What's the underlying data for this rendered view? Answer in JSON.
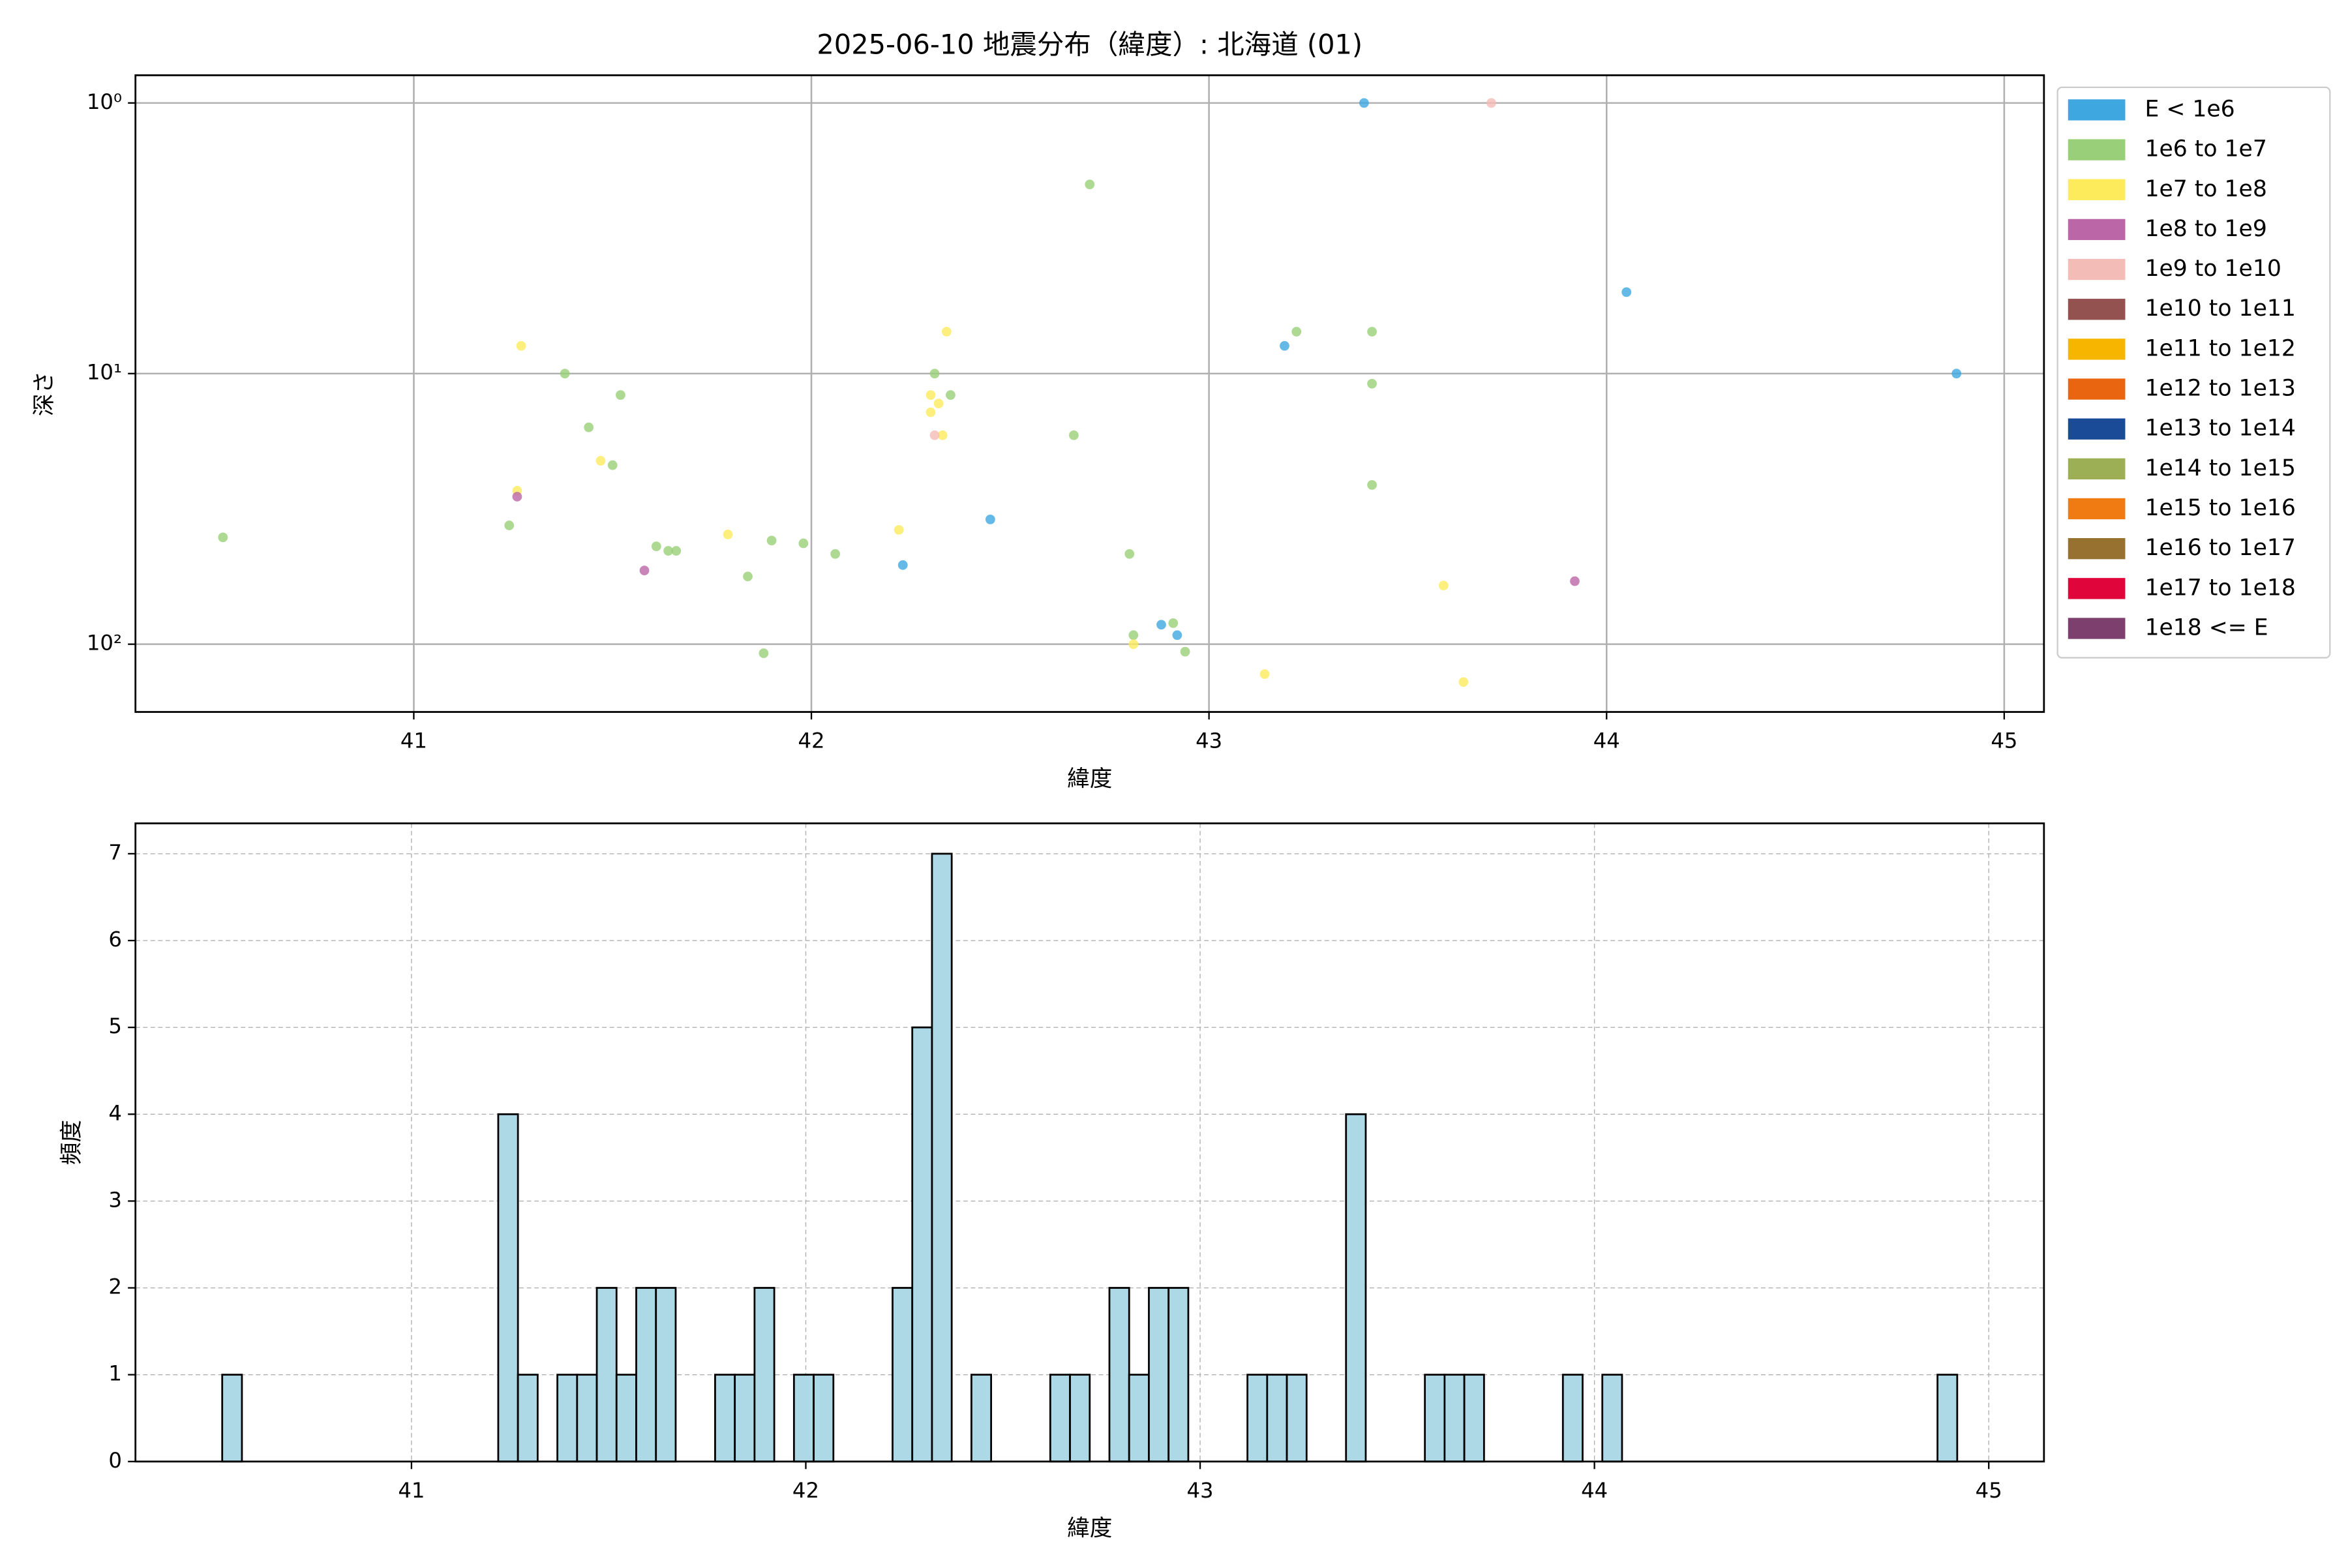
{
  "chart_data": [
    {
      "type": "scatter",
      "title": "2025-06-10 地震分布（緯度）: 北海道 (01)",
      "xlabel": "緯度",
      "ylabel": "深さ",
      "xlim": [
        40.3,
        45.1
      ],
      "xticks": [
        41,
        42,
        43,
        44,
        45
      ],
      "ylim": [
        0.79,
        178
      ],
      "ylog": true,
      "yinvert": true,
      "yticks": [
        {
          "value": 1,
          "label": "10⁰"
        },
        {
          "value": 10,
          "label": "10¹"
        },
        {
          "value": 100,
          "label": "10²"
        }
      ],
      "grid": true,
      "grid_style": "solid",
      "legend": "outside right",
      "series": [
        {
          "name": "E < 1e6",
          "color": "#3fa7e0",
          "x": [
            43.39,
            44.05,
            44.88,
            43.19,
            42.45,
            42.23,
            42.88,
            42.92
          ],
          "y": [
            1.0,
            5.0,
            10,
            7.9,
            34.6,
            51,
            84.7,
            92.6
          ]
        },
        {
          "name": "1e6 to 1e7",
          "color": "#98cf78",
          "x": [
            42.7,
            43.22,
            43.41,
            41.38,
            43.41,
            41.52,
            42.35,
            42.31,
            41.44,
            42.66,
            41.5,
            43.41,
            40.52,
            41.24,
            41.61,
            41.64,
            41.66,
            41.9,
            41.98,
            42.06,
            41.84,
            42.8,
            41.88,
            42.81,
            42.91,
            42.94
          ],
          "y": [
            2.0,
            7.0,
            7.0,
            10,
            10.9,
            12.0,
            12.0,
            10,
            15.8,
            16.9,
            21.8,
            25.8,
            40.3,
            36.4,
            43.5,
            45.2,
            45.2,
            41.4,
            42.4,
            46.4,
            56.2,
            46.4,
            108,
            92.6,
            83.6,
            106.6
          ]
        },
        {
          "name": "1e7 to 1e8",
          "color": "#fdeb5c",
          "x": [
            41.27,
            42.34,
            42.3,
            42.32,
            42.3,
            42.33,
            41.47,
            41.26,
            41.79,
            42.22,
            42.81,
            43.59,
            43.14,
            43.64
          ],
          "y": [
            7.9,
            7.0,
            12.0,
            12.9,
            13.9,
            16.9,
            21.0,
            27.1,
            39.3,
            37.8,
            100,
            60.7,
            129,
            138
          ]
        },
        {
          "name": "1e8 to 1e9",
          "color": "#bb66a6",
          "x": [
            41.26,
            41.58,
            43.92
          ],
          "y": [
            28.5,
            53.4,
            58.5
          ]
        },
        {
          "name": "1e9 to 1e10",
          "color": "#f4bcb6",
          "x": [
            43.71,
            42.31
          ],
          "y": [
            1.0,
            16.9
          ]
        },
        {
          "name": "1e10 to 1e11",
          "color": "#93524f",
          "x": [],
          "y": []
        },
        {
          "name": "1e11 to 1e12",
          "color": "#f7b500",
          "x": [],
          "y": []
        },
        {
          "name": "1e12 to 1e13",
          "color": "#ea6510",
          "x": [],
          "y": []
        },
        {
          "name": "1e13 to 1e14",
          "color": "#1a4b96",
          "x": [],
          "y": []
        },
        {
          "name": "1e14 to 1e15",
          "color": "#9daf55",
          "x": [],
          "y": []
        },
        {
          "name": "1e15 to 1e16",
          "color": "#f07b12",
          "x": [],
          "y": []
        },
        {
          "name": "1e16 to 1e17",
          "color": "#977130",
          "x": [],
          "y": []
        },
        {
          "name": "1e17 to 1e18",
          "color": "#e0053a",
          "x": [],
          "y": []
        },
        {
          "name": "1e18 <= E",
          "color": "#7c3f6e",
          "x": [],
          "y": []
        }
      ]
    },
    {
      "type": "histogram",
      "xlabel": "緯度",
      "ylabel": "頻度",
      "xlim": [
        40.3,
        45.14
      ],
      "xticks": [
        41,
        42,
        43,
        44,
        45
      ],
      "ylim": [
        0,
        7.35
      ],
      "yticks": [
        0,
        1,
        2,
        3,
        4,
        5,
        6,
        7
      ],
      "grid": true,
      "grid_style": "dashed",
      "color": "#add8e6",
      "edgecolor": "#000000",
      "bins": [
        40.52,
        40.57,
        40.62,
        40.67,
        40.72,
        40.77,
        40.82,
        40.87,
        40.92,
        40.97,
        41.02,
        41.07,
        41.12,
        41.17,
        41.22,
        41.27,
        41.32,
        41.37,
        41.42,
        41.47,
        41.52,
        41.57,
        41.62,
        41.67,
        41.72,
        41.77,
        41.82,
        41.87,
        41.92,
        41.97,
        42.02,
        42.07,
        42.12,
        42.17,
        42.22,
        42.27,
        42.32,
        42.37,
        42.42,
        42.47,
        42.52,
        42.57,
        42.62,
        42.67,
        42.72,
        42.77,
        42.82,
        42.87,
        42.92,
        42.97,
        43.02,
        43.07,
        43.12,
        43.17,
        43.22,
        43.27,
        43.32,
        43.37,
        43.42,
        43.47,
        43.52,
        43.57,
        43.62,
        43.67,
        43.72,
        43.77,
        43.82,
        43.87,
        43.92,
        43.97,
        44.02,
        44.07,
        44.12,
        44.17,
        44.22,
        44.27,
        44.32,
        44.37,
        44.42,
        44.47,
        44.52,
        44.57,
        44.62,
        44.67,
        44.72,
        44.77,
        44.82,
        44.87,
        44.92
      ],
      "counts": [
        1,
        0,
        0,
        0,
        0,
        0,
        0,
        0,
        0,
        0,
        0,
        0,
        0,
        0,
        4,
        1,
        0,
        1,
        1,
        2,
        1,
        2,
        2,
        0,
        0,
        1,
        1,
        2,
        0,
        1,
        1,
        0,
        0,
        0,
        2,
        5,
        7,
        0,
        1,
        0,
        0,
        0,
        1,
        1,
        0,
        2,
        1,
        2,
        2,
        0,
        0,
        0,
        1,
        1,
        1,
        0,
        0,
        4,
        0,
        0,
        0,
        1,
        1,
        1,
        0,
        0,
        0,
        0,
        1,
        0,
        1,
        0,
        0,
        0,
        0,
        0,
        0,
        0,
        0,
        0,
        0,
        0,
        0,
        0,
        0,
        0,
        0,
        1
      ]
    }
  ]
}
